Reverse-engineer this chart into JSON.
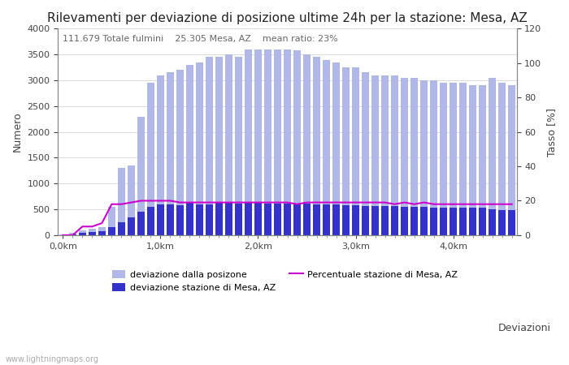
{
  "title": "Rilevamenti per deviazione di posizione ultime 24h per la stazione: Mesa, AZ",
  "subtitle": "111.679 Totale fulmini    25.305 Mesa, AZ    mean ratio: 23%",
  "xlabel_bottom": "Deviazioni",
  "ylabel_left": "Numero",
  "ylabel_right": "Tasso [%]",
  "watermark": "www.lightningmaps.org",
  "ylim_left": [
    0,
    4000
  ],
  "ylim_right": [
    0,
    120
  ],
  "yticks_left": [
    0,
    500,
    1000,
    1500,
    2000,
    2500,
    3000,
    3500,
    4000
  ],
  "yticks_right": [
    0,
    20,
    40,
    60,
    80,
    100,
    120
  ],
  "xtick_positions": [
    0,
    10,
    20,
    30,
    40
  ],
  "xtick_labels": [
    "0,0km",
    "1,0km",
    "2,0km",
    "3,0km",
    "4,0km"
  ],
  "n_bars": 47,
  "bar_width": 0.8,
  "color_total": "#b0b8e8",
  "color_station": "#3333cc",
  "color_line": "#cc00cc",
  "legend_total": "deviazione dalla posizone",
  "legend_station": "deviazione stazione di Mesa, AZ",
  "legend_line": "Percentuale stazione di Mesa, AZ",
  "total_bars": [
    10,
    50,
    100,
    130,
    160,
    550,
    1300,
    1350,
    2300,
    2950,
    3100,
    3150,
    3200,
    3300,
    3350,
    3450,
    3450,
    3500,
    3450,
    3600,
    3600,
    3600,
    3600,
    3600,
    3580,
    3500,
    3450,
    3400,
    3350,
    3250,
    3250,
    3150,
    3100,
    3100,
    3100,
    3050,
    3050,
    3000,
    3000,
    2950,
    2950,
    2950,
    2900,
    2900,
    3050,
    2950,
    2900
  ],
  "station_bars": [
    5,
    20,
    50,
    60,
    80,
    150,
    250,
    350,
    450,
    550,
    600,
    600,
    580,
    620,
    600,
    600,
    620,
    620,
    610,
    630,
    620,
    610,
    610,
    610,
    610,
    610,
    600,
    600,
    590,
    580,
    580,
    570,
    570,
    570,
    560,
    550,
    550,
    550,
    540,
    540,
    540,
    530,
    530,
    530,
    500,
    490,
    480
  ],
  "ratio_line": [
    0,
    0,
    5,
    5,
    7,
    18,
    18,
    19,
    20,
    20,
    20,
    20,
    19,
    19,
    19,
    19,
    19,
    19,
    19,
    19,
    19,
    19,
    19,
    19,
    18,
    19,
    19,
    19,
    19,
    19,
    19,
    19,
    19,
    19,
    18,
    19,
    18,
    19,
    18,
    18,
    18,
    18,
    18,
    18,
    18,
    18,
    18
  ],
  "title_fontsize": 11,
  "label_fontsize": 9,
  "tick_fontsize": 8,
  "subtitle_fontsize": 8
}
